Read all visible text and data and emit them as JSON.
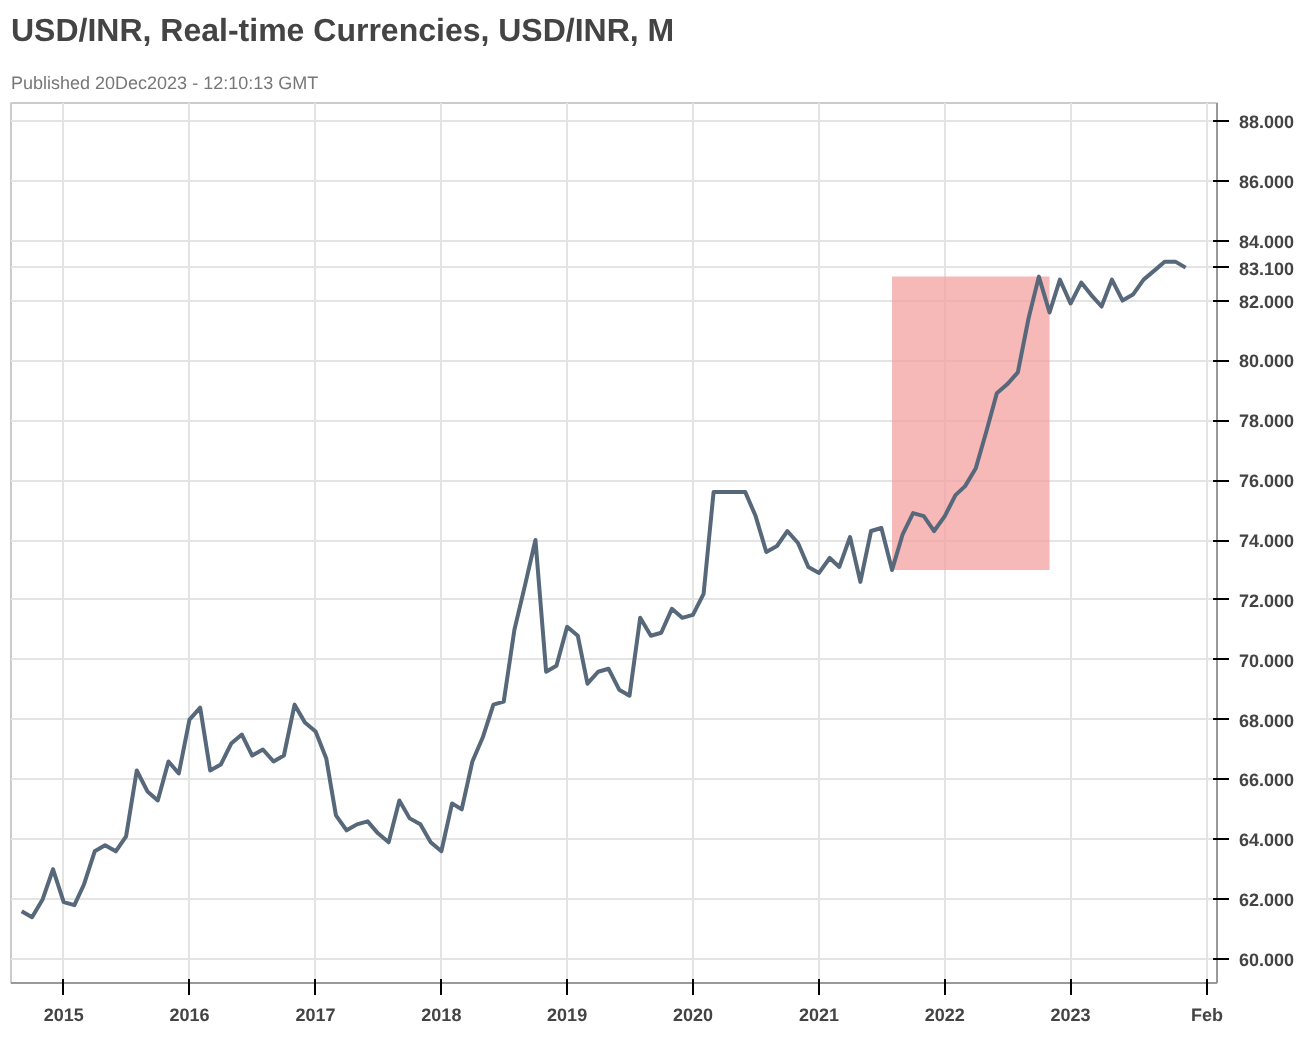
{
  "chart_data": {
    "type": "line",
    "title": "USD/INR, Real-time Currencies, USD/INR, M",
    "subtitle": "Published 20Dec2023 - 12:10:13 GMT",
    "x": [
      "2014-09",
      "2014-10",
      "2014-11",
      "2014-12",
      "2015-01",
      "2015-02",
      "2015-03",
      "2015-04",
      "2015-05",
      "2015-06",
      "2015-07",
      "2015-08",
      "2015-09",
      "2015-10",
      "2015-11",
      "2015-12",
      "2016-01",
      "2016-02",
      "2016-03",
      "2016-04",
      "2016-05",
      "2016-06",
      "2016-07",
      "2016-08",
      "2016-09",
      "2016-10",
      "2016-11",
      "2016-12",
      "2017-01",
      "2017-02",
      "2017-03",
      "2017-04",
      "2017-05",
      "2017-06",
      "2017-07",
      "2017-08",
      "2017-09",
      "2017-10",
      "2017-11",
      "2017-12",
      "2018-01",
      "2018-02",
      "2018-03",
      "2018-04",
      "2018-05",
      "2018-06",
      "2018-07",
      "2018-08",
      "2018-09",
      "2018-10",
      "2018-11",
      "2018-12",
      "2019-01",
      "2019-02",
      "2019-03",
      "2019-04",
      "2019-05",
      "2019-06",
      "2019-07",
      "2019-08",
      "2019-09",
      "2019-10",
      "2019-11",
      "2019-12",
      "2020-01",
      "2020-02",
      "2020-03",
      "2020-04",
      "2020-05",
      "2020-06",
      "2020-07",
      "2020-08",
      "2020-09",
      "2020-10",
      "2020-11",
      "2020-12",
      "2021-01",
      "2021-02",
      "2021-03",
      "2021-04",
      "2021-05",
      "2021-06",
      "2021-07",
      "2021-08",
      "2021-09",
      "2021-10",
      "2021-11",
      "2021-12",
      "2022-01",
      "2022-02",
      "2022-03",
      "2022-04",
      "2022-05",
      "2022-06",
      "2022-07",
      "2022-08",
      "2022-09",
      "2022-10",
      "2022-11",
      "2022-12",
      "2023-01",
      "2023-02",
      "2023-03",
      "2023-04",
      "2023-05",
      "2023-06",
      "2023-07",
      "2023-08",
      "2023-09",
      "2023-10",
      "2023-11",
      "2023-12"
    ],
    "series": [
      {
        "color": "#56687a",
        "values": [
          61.6,
          61.4,
          62.0,
          63.0,
          61.9,
          61.8,
          62.5,
          63.6,
          63.8,
          63.6,
          64.1,
          66.3,
          65.6,
          65.3,
          66.6,
          66.2,
          68.0,
          68.4,
          66.3,
          66.5,
          67.2,
          67.5,
          66.8,
          67.0,
          66.6,
          66.8,
          68.5,
          67.9,
          67.6,
          66.7,
          64.8,
          64.3,
          64.5,
          64.6,
          64.2,
          63.9,
          65.3,
          64.7,
          64.5,
          63.9,
          63.6,
          65.2,
          65.0,
          66.6,
          67.4,
          68.5,
          68.6,
          71.0,
          72.5,
          74.0,
          69.6,
          69.8,
          71.1,
          70.8,
          69.2,
          69.6,
          69.7,
          69.0,
          68.8,
          71.4,
          70.8,
          70.9,
          71.7,
          71.4,
          71.5,
          72.2,
          75.6,
          75.6,
          75.6,
          75.6,
          74.8,
          73.6,
          73.8,
          74.3,
          73.9,
          73.1,
          72.9,
          73.4,
          73.1,
          74.1,
          72.6,
          74.3,
          74.4,
          73.0,
          74.2,
          74.9,
          74.8,
          74.3,
          74.8,
          75.5,
          75.8,
          76.4,
          77.6,
          78.9,
          79.2,
          79.6,
          81.4,
          82.8,
          81.6,
          82.7,
          81.9,
          82.6,
          82.2,
          81.8,
          82.7,
          82.0,
          82.2,
          82.7,
          83.0,
          83.3,
          83.3,
          83.1
        ]
      }
    ],
    "xlim": [
      "2014-08",
      "2024-03"
    ],
    "xticks": [
      {
        "value": "2015-01",
        "label": "2015"
      },
      {
        "value": "2016-01",
        "label": "2016"
      },
      {
        "value": "2017-01",
        "label": "2017"
      },
      {
        "value": "2018-01",
        "label": "2018"
      },
      {
        "value": "2019-01",
        "label": "2019"
      },
      {
        "value": "2020-01",
        "label": "2020"
      },
      {
        "value": "2021-01",
        "label": "2021"
      },
      {
        "value": "2022-01",
        "label": "2022"
      },
      {
        "value": "2023-01",
        "label": "2023"
      },
      {
        "value": "2024-02",
        "label": "Feb"
      }
    ],
    "ylim": [
      59.2,
      88.6
    ],
    "yticks": [
      {
        "value": 60,
        "label": "60.000"
      },
      {
        "value": 62,
        "label": "62.000"
      },
      {
        "value": 64,
        "label": "64.000"
      },
      {
        "value": 66,
        "label": "66.000"
      },
      {
        "value": 68,
        "label": "68.000"
      },
      {
        "value": 70,
        "label": "70.000"
      },
      {
        "value": 72,
        "label": "72.000"
      },
      {
        "value": 74,
        "label": "74.000"
      },
      {
        "value": 76,
        "label": "76.000"
      },
      {
        "value": 78,
        "label": "78.000"
      },
      {
        "value": 80,
        "label": "80.000"
      },
      {
        "value": 82,
        "label": "82.000"
      },
      {
        "value": 83.1,
        "label": "83.100"
      },
      {
        "value": 84,
        "label": "84.000"
      },
      {
        "value": 86,
        "label": "86.000"
      },
      {
        "value": 88,
        "label": "88.000"
      }
    ],
    "bands": [
      {
        "axis": "x",
        "from": "2021-08",
        "to": "2022-11",
        "color": "#f4a0a0"
      }
    ],
    "grid": true,
    "marker": "none",
    "line_style": "solid"
  }
}
